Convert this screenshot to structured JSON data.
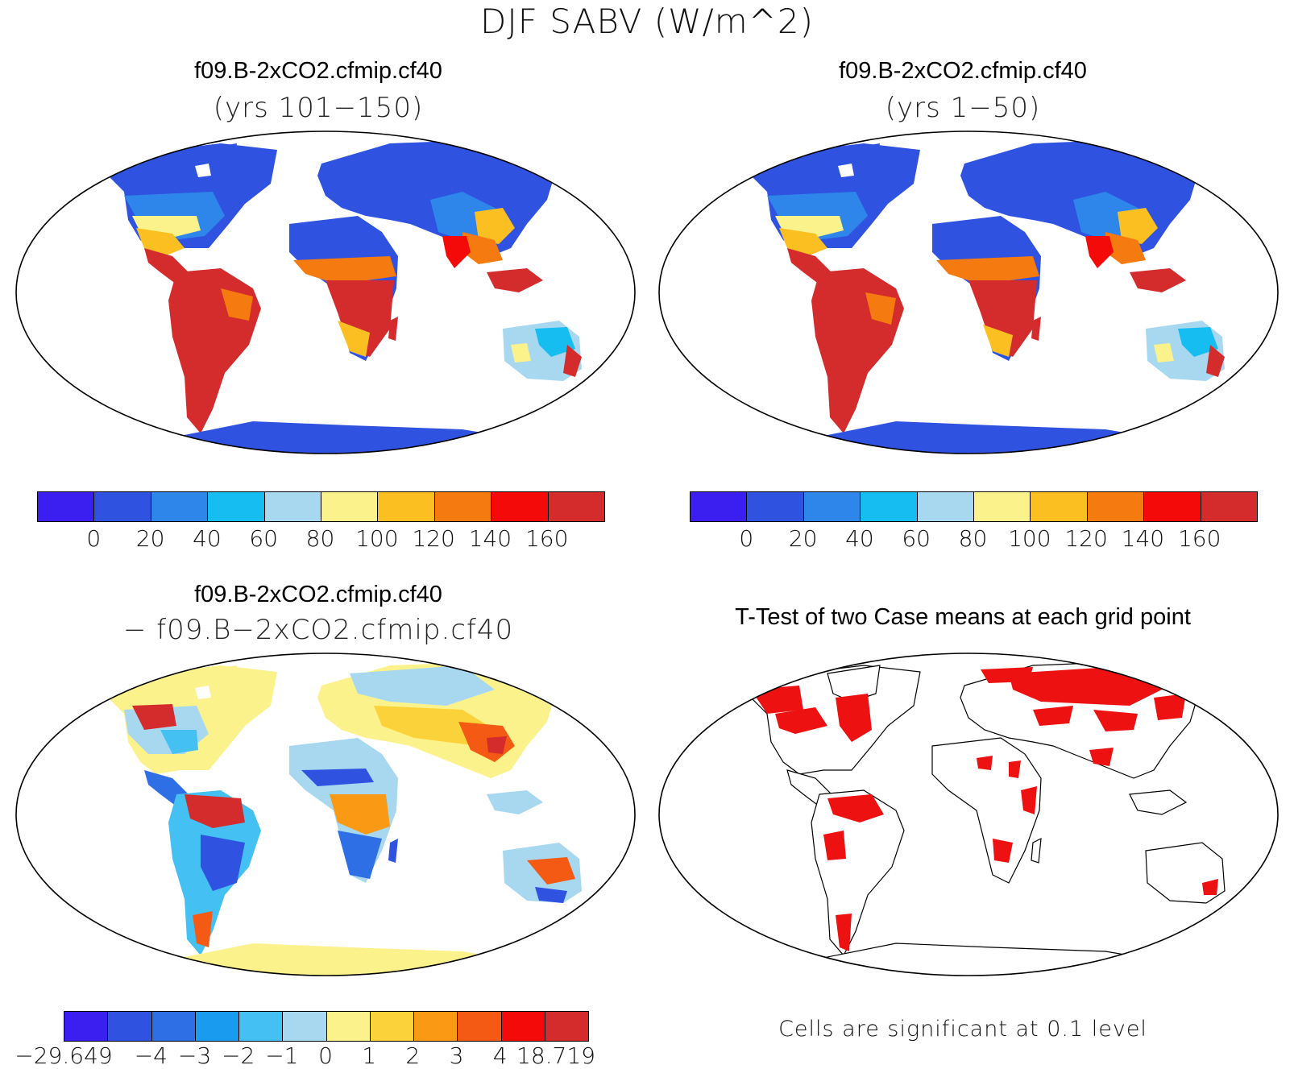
{
  "figure": {
    "title": "DJF SABV (W/m^2)"
  },
  "panels": [
    {
      "title": "f09.B-2xCO2.cfmip.cf40",
      "subtitle": "(yrs 101−150)",
      "type": "field",
      "colorbar": {
        "colors": [
          "#3a1ff0",
          "#2f52e0",
          "#2e86ea",
          "#15bdf0",
          "#a8d8f0",
          "#fcf28c",
          "#fcbf22",
          "#f57a0f",
          "#f50a0a",
          "#d42c2c"
        ],
        "tick_labels": [
          "0",
          "20",
          "40",
          "60",
          "80",
          "100",
          "120",
          "140",
          "160"
        ]
      }
    },
    {
      "title": "f09.B-2xCO2.cfmip.cf40",
      "subtitle": "(yrs 1−50)",
      "type": "field",
      "colorbar": {
        "colors": [
          "#3a1ff0",
          "#2f52e0",
          "#2e86ea",
          "#15bdf0",
          "#a8d8f0",
          "#fcf28c",
          "#fcbf22",
          "#f57a0f",
          "#f50a0a",
          "#d42c2c"
        ],
        "tick_labels": [
          "0",
          "20",
          "40",
          "60",
          "80",
          "100",
          "120",
          "140",
          "160"
        ]
      }
    },
    {
      "title": "f09.B-2xCO2.cfmip.cf40",
      "subtitle": "− f09.B−2xCO2.cfmip.cf40",
      "type": "difference",
      "colorbar": {
        "colors": [
          "#3a1ff0",
          "#2f52e0",
          "#2f6fe6",
          "#199bf0",
          "#45c0f2",
          "#a8d8f0",
          "#fcf28c",
          "#fcd23a",
          "#fa9a14",
          "#f55a14",
          "#f50a0a",
          "#d42c2c"
        ],
        "tick_labels": [
          "−29.649",
          "−4",
          "−3",
          "−2",
          "−1",
          "0",
          "1",
          "2",
          "3",
          "4",
          "18.719"
        ]
      }
    },
    {
      "title": "T-Test of two Case means at each grid point",
      "type": "ttest",
      "significance_color": "#ee1111",
      "note": "Cells are significant at 0.1 level"
    }
  ]
}
